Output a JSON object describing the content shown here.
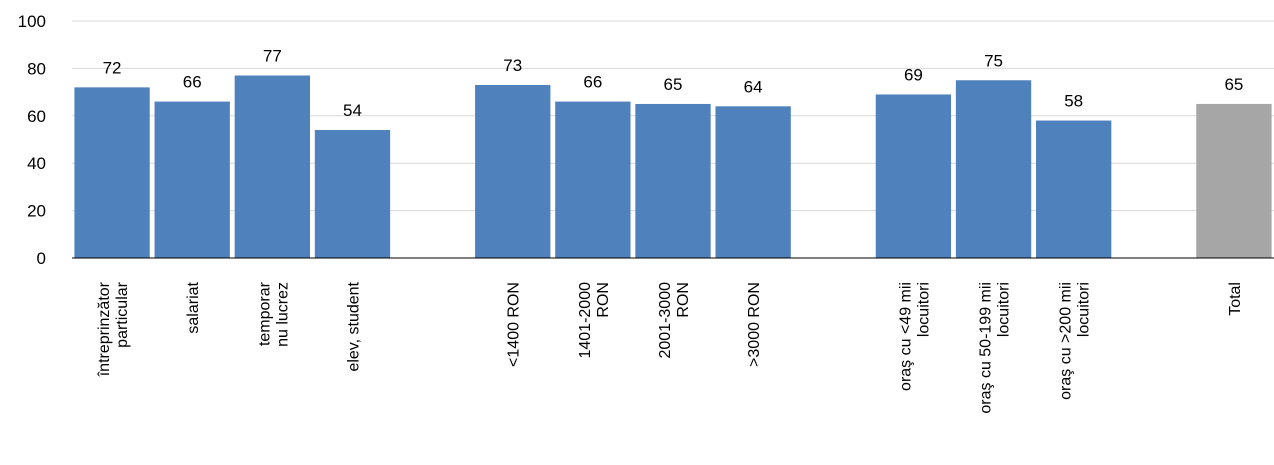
{
  "chart_data": {
    "type": "bar",
    "title": "",
    "xlabel": "",
    "ylabel": "",
    "ylim": [
      0,
      100
    ],
    "yticks": [
      "0",
      "20",
      "40",
      "60",
      "80",
      "100"
    ],
    "grid": true,
    "legend": "none",
    "colors": {
      "bar": "#4f81bd",
      "total": "#a6a6a6",
      "grid": "#d9d9d9"
    },
    "categories": [
      {
        "lines": [
          "întreprinzător",
          "particular"
        ],
        "value": 72
      },
      {
        "lines": [
          "salariat"
        ],
        "value": 66
      },
      {
        "lines": [
          "temporar",
          "nu lucrez"
        ],
        "value": 77
      },
      {
        "lines": [
          "elev, student"
        ],
        "value": 54
      },
      {
        "lines": [],
        "value": null
      },
      {
        "lines": [
          "<1400 RON"
        ],
        "value": 73
      },
      {
        "lines": [
          "1401-2000",
          "RON"
        ],
        "value": 66
      },
      {
        "lines": [
          "2001-3000",
          "RON"
        ],
        "value": 65
      },
      {
        "lines": [
          ">3000 RON"
        ],
        "value": 64
      },
      {
        "lines": [],
        "value": null
      },
      {
        "lines": [
          "oraş cu <49 mii",
          "locuitori"
        ],
        "value": 69
      },
      {
        "lines": [
          "oraş cu 50-199 mii",
          "locuitori"
        ],
        "value": 75
      },
      {
        "lines": [
          "oraş cu >200 mii",
          "locuitori"
        ],
        "value": 58
      },
      {
        "lines": [],
        "value": null
      },
      {
        "lines": [
          "Total"
        ],
        "value": 65,
        "highlight": true
      }
    ]
  }
}
